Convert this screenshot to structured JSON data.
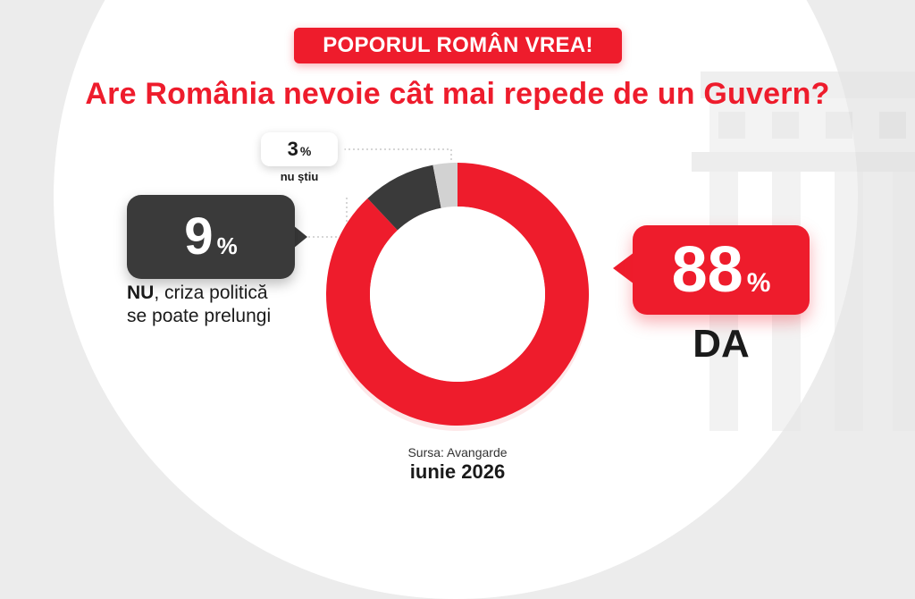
{
  "tag": "POPORUL ROMÂN VREA!",
  "headline": "Are România nevoie cât mai repede de un Guvern?",
  "chart_data": {
    "type": "pie",
    "style": "donut",
    "segments": [
      {
        "name": "DA",
        "value": 88,
        "color": "#ee1c2c"
      },
      {
        "name": "NU",
        "value": 9,
        "color": "#3a3a3a"
      },
      {
        "name": "nu știu",
        "value": 3,
        "color": "#d2d2d2"
      }
    ]
  },
  "da": {
    "value": "88",
    "unit": "%",
    "label": "DA"
  },
  "nu": {
    "value": "9",
    "unit": "%",
    "label_bold": "NU",
    "label_rest": ", criza politică",
    "label_line2": "se poate prelungi"
  },
  "nustiu": {
    "value": "3",
    "unit": "%",
    "label": "nu știu"
  },
  "source": "Sursa: Avangarde",
  "date": "iunie 2026"
}
